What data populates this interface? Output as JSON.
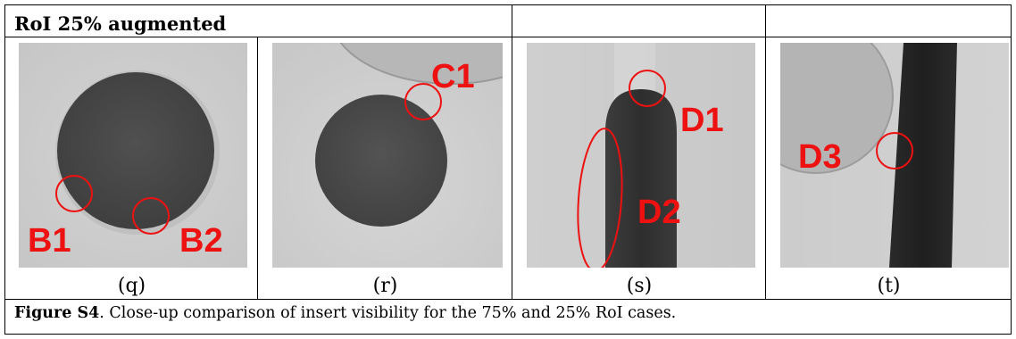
{
  "header": {
    "title": "RoI 25% augmented"
  },
  "panels": [
    {
      "caption": "(q)",
      "markers": [
        "B1",
        "B2"
      ]
    },
    {
      "caption": "(r)",
      "markers": [
        "C1"
      ]
    },
    {
      "caption": "(s)",
      "markers": [
        "D1",
        "D2"
      ]
    },
    {
      "caption": "(t)",
      "markers": [
        "D3"
      ]
    }
  ],
  "figure_caption": {
    "label": "Figure S4",
    "text": ". Close-up comparison of insert visibility for the 75% and 25% RoI cases."
  },
  "colors": {
    "marker": "#ee1111",
    "border": "#000000"
  }
}
